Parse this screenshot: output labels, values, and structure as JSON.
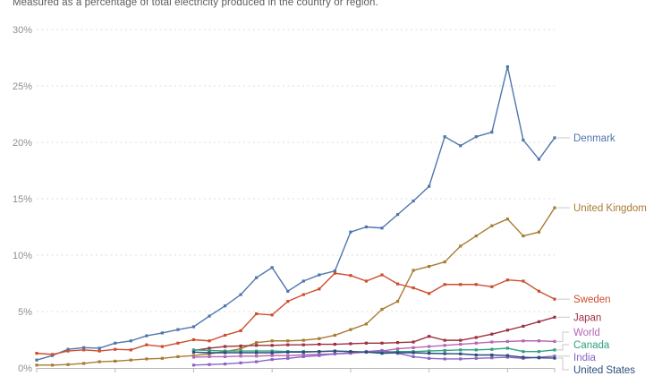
{
  "subtitle": "Measured as a percentage of total electricity produced in the country or region.",
  "axis": {
    "y_tick_labels": [
      "0%",
      "5%",
      "10%",
      "15%",
      "20%",
      "25%",
      "30%"
    ],
    "grid_color": "#dcdcdc",
    "axis_color": "#b5b5b5",
    "tick_label_color": "#8f8f8f"
  },
  "chart_data": {
    "type": "line",
    "xlim": [
      1990,
      2023
    ],
    "ylim": [
      0,
      30
    ],
    "x_ticks": [
      1990,
      1995,
      2000,
      2005,
      2010,
      2015,
      2020,
      2023
    ],
    "y_ticks": [
      0,
      5,
      10,
      15,
      20,
      25,
      30
    ],
    "grid": "horizontal-dashed",
    "legend_position": "right-end-labels",
    "series": [
      {
        "name": "Denmark",
        "color": "#4f76ac",
        "start_year": 1990,
        "values": [
          0.7,
          1.1,
          1.65,
          1.8,
          1.75,
          2.2,
          2.4,
          2.85,
          3.1,
          3.4,
          3.65,
          4.6,
          5.5,
          6.5,
          8.0,
          8.9,
          6.8,
          7.7,
          8.25,
          8.6,
          12.05,
          12.5,
          12.4,
          13.6,
          14.8,
          16.1,
          20.5,
          19.7,
          20.5,
          20.9,
          26.7,
          20.2,
          18.5,
          20.4
        ]
      },
      {
        "name": "United Kingdom",
        "color": "#a87b32",
        "start_year": 1990,
        "values": [
          0.25,
          0.25,
          0.3,
          0.4,
          0.55,
          0.6,
          0.7,
          0.8,
          0.85,
          1.0,
          1.1,
          1.25,
          1.45,
          1.7,
          2.25,
          2.4,
          2.4,
          2.45,
          2.6,
          2.9,
          3.4,
          3.9,
          5.2,
          5.9,
          8.65,
          9.0,
          9.4,
          10.8,
          11.7,
          12.6,
          13.2,
          11.7,
          12.05,
          14.2
        ]
      },
      {
        "name": "Sweden",
        "color": "#cc4e2f",
        "start_year": 1990,
        "values": [
          1.3,
          1.2,
          1.5,
          1.6,
          1.5,
          1.65,
          1.6,
          2.05,
          1.9,
          2.2,
          2.5,
          2.4,
          2.9,
          3.3,
          4.8,
          4.7,
          5.9,
          6.5,
          7.0,
          8.4,
          8.2,
          7.7,
          8.25,
          7.45,
          7.1,
          6.6,
          7.4,
          7.4,
          7.4,
          7.2,
          7.8,
          7.7,
          6.8,
          6.1
        ]
      },
      {
        "name": "Japan",
        "color": "#9c3041",
        "start_year": 2000,
        "values": [
          1.55,
          1.75,
          1.9,
          1.95,
          2.0,
          2.0,
          2.05,
          2.05,
          2.1,
          2.1,
          2.15,
          2.2,
          2.2,
          2.25,
          2.3,
          2.8,
          2.45,
          2.45,
          2.7,
          3.0,
          3.35,
          3.7,
          4.1,
          4.5
        ]
      },
      {
        "name": "World",
        "color": "#b567b5",
        "start_year": 2000,
        "values": [
          0.95,
          1.0,
          1.0,
          1.05,
          1.05,
          1.1,
          1.1,
          1.15,
          1.2,
          1.25,
          1.3,
          1.4,
          1.5,
          1.7,
          1.8,
          1.9,
          2.0,
          2.1,
          2.2,
          2.3,
          2.35,
          2.4,
          2.4,
          2.35
        ]
      },
      {
        "name": "Canada",
        "color": "#2fa080",
        "start_year": 2000,
        "values": [
          1.6,
          1.55,
          1.5,
          1.5,
          1.5,
          1.5,
          1.45,
          1.45,
          1.45,
          1.5,
          1.45,
          1.4,
          1.4,
          1.45,
          1.45,
          1.5,
          1.55,
          1.6,
          1.6,
          1.65,
          1.75,
          1.45,
          1.45,
          1.6
        ]
      },
      {
        "name": "India",
        "color": "#8a63c4",
        "start_year": 2000,
        "values": [
          0.25,
          0.3,
          0.35,
          0.45,
          0.55,
          0.75,
          0.85,
          1.0,
          1.1,
          1.25,
          1.35,
          1.45,
          1.55,
          1.3,
          1.0,
          0.85,
          0.8,
          0.8,
          0.85,
          0.9,
          0.95,
          0.85,
          0.95,
          1.05
        ]
      },
      {
        "name": "United States",
        "color": "#2a4d7d",
        "start_year": 2000,
        "values": [
          1.4,
          1.35,
          1.35,
          1.35,
          1.35,
          1.35,
          1.4,
          1.4,
          1.45,
          1.5,
          1.45,
          1.4,
          1.3,
          1.35,
          1.35,
          1.3,
          1.27,
          1.25,
          1.15,
          1.15,
          1.1,
          0.95,
          0.9,
          0.87
        ]
      }
    ]
  }
}
